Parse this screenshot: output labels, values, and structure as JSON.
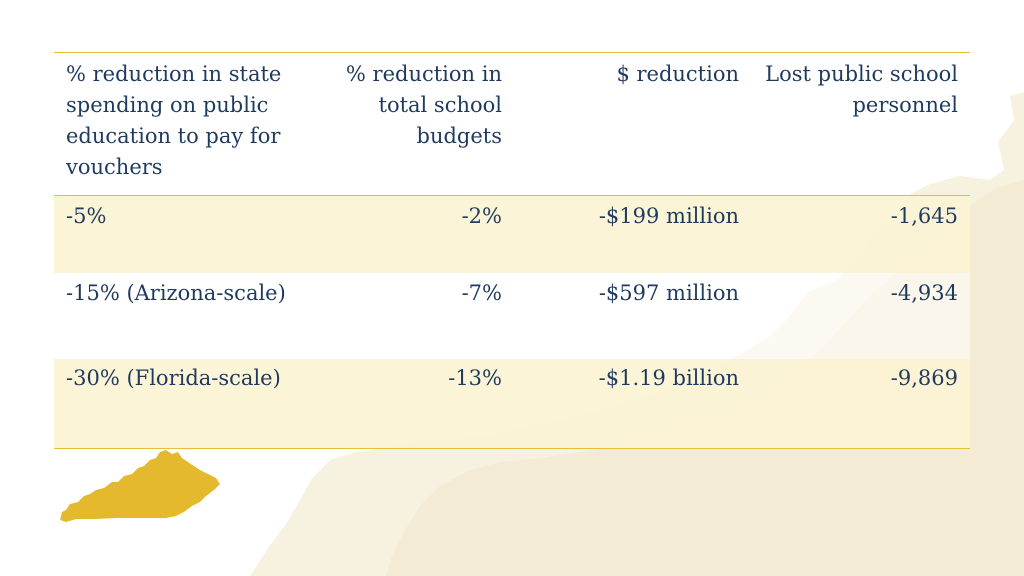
{
  "colors": {
    "text": "#1f3a5f",
    "accent_gold": "#e6bf3a",
    "row_shade": "#fbf3d4",
    "map_background": "#f6efdc",
    "kentucky_fill": "#e4b92e"
  },
  "table": {
    "headers": [
      "% reduction in state spending on public education to pay for vouchers",
      "% reduction in total school budgets",
      "$ reduction",
      "Lost public school personnel"
    ],
    "rows": [
      [
        "-5%",
        "-2%",
        "-$199 million",
        "-1,645"
      ],
      [
        "-15% (Arizona-scale)",
        "-7%",
        "-$597 million",
        "-4,934"
      ],
      [
        "-30% (Florida-scale)",
        "-13%",
        "-$1.19 billion",
        "-9,869"
      ]
    ]
  },
  "icons": {
    "background": "us-map-silhouette-icon",
    "state": "kentucky-state-icon"
  }
}
